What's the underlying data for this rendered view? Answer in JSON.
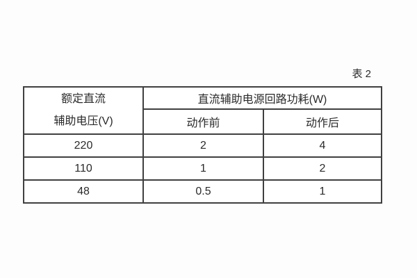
{
  "caption": "表 2",
  "colors": {
    "background": "#fdfdfd",
    "cell_background": "#ffffff",
    "border": "#3f3f3f",
    "text": "#2a2a2a"
  },
  "table": {
    "header": {
      "col1_line1": "额定直流",
      "col1_line2": "辅助电压(V)",
      "group": "直流辅助电源回路功耗(W)",
      "sub_before": "动作前",
      "sub_after": "动作后"
    },
    "rows": [
      {
        "voltage": "220",
        "before": "2",
        "after": "4"
      },
      {
        "voltage": "110",
        "before": "1",
        "after": "2"
      },
      {
        "voltage": "48",
        "before": "0.5",
        "after": "1"
      }
    ]
  }
}
